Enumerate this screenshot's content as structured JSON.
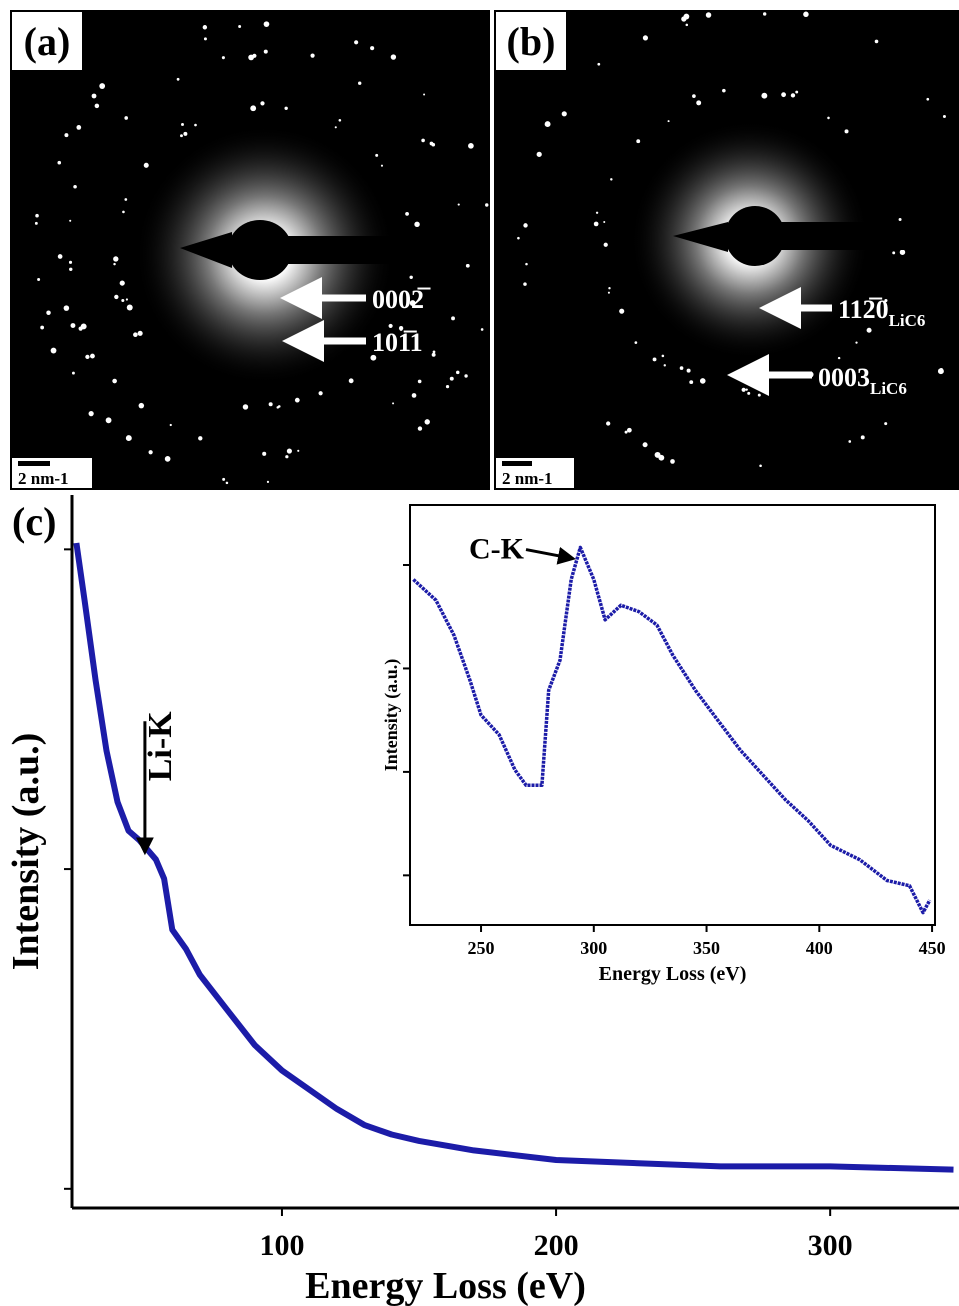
{
  "panels": [
    {
      "label": "(a)",
      "scale_bar": "2 nm-1",
      "annotations": [
        {
          "text": "0002̅"
        },
        {
          "text": "101̅1"
        }
      ]
    },
    {
      "label": "(b)",
      "scale_bar": "2 nm-1",
      "annotations": [
        {
          "text": "112̅0",
          "subscript": "LiC6"
        },
        {
          "text": "0003",
          "subscript": "LiC6"
        }
      ]
    }
  ],
  "chart_data": [
    {
      "type": "line",
      "panel_label": "(c)",
      "x_label": "Energy Loss (eV)",
      "y_label": "Intensity (a.u.)",
      "xlim": [
        23.4,
        347
      ],
      "xticks": [
        100,
        200,
        300
      ],
      "ylim": [
        0.94,
        3.17
      ],
      "yticks": [
        1,
        2,
        3
      ],
      "ytick_labels": false,
      "series": [
        {
          "color": "#1c1ca8",
          "x": [
            25,
            28,
            32,
            36,
            40,
            44,
            48,
            50,
            54,
            57,
            60,
            65,
            70,
            80,
            90,
            100,
            110,
            120,
            130,
            140,
            150,
            170,
            200,
            230,
            260,
            300,
            345
          ],
          "values": [
            3.02,
            2.84,
            2.59,
            2.37,
            2.21,
            2.12,
            2.09,
            2.07,
            2.03,
            1.97,
            1.81,
            1.75,
            1.67,
            1.56,
            1.45,
            1.37,
            1.31,
            1.25,
            1.2,
            1.17,
            1.15,
            1.12,
            1.09,
            1.08,
            1.07,
            1.07,
            1.06
          ]
        }
      ],
      "annotations": [
        {
          "text": "Li-K",
          "x": 50,
          "y": 2.04
        }
      ]
    },
    {
      "type": "line",
      "x_label": "Energy Loss (eV)",
      "y_label": "Intensity (a.u.)",
      "xlim": [
        218.5,
        451.3
      ],
      "xticks": [
        250,
        300,
        350,
        400,
        450
      ],
      "ylim": [
        0.52,
        4.58
      ],
      "yticks": [
        1,
        2,
        3,
        4
      ],
      "ytick_labels": false,
      "series": [
        {
          "color": "#1c1ca8",
          "x": [
            220,
            230,
            238,
            245,
            250,
            258,
            265,
            270,
            277,
            280,
            285,
            290,
            294,
            300,
            305,
            312,
            320,
            328,
            335,
            345,
            355,
            365,
            375,
            385,
            395,
            405,
            418,
            430,
            440,
            446,
            449
          ],
          "values": [
            3.86,
            3.66,
            3.32,
            2.89,
            2.55,
            2.36,
            2.02,
            1.87,
            1.87,
            2.79,
            3.08,
            3.86,
            4.17,
            3.86,
            3.47,
            3.61,
            3.55,
            3.42,
            3.13,
            2.79,
            2.5,
            2.21,
            1.97,
            1.73,
            1.53,
            1.29,
            1.15,
            0.95,
            0.9,
            0.64,
            0.76
          ]
        }
      ],
      "annotations": [
        {
          "text": "C-K",
          "x": 293,
          "y": 4.12
        }
      ]
    }
  ]
}
